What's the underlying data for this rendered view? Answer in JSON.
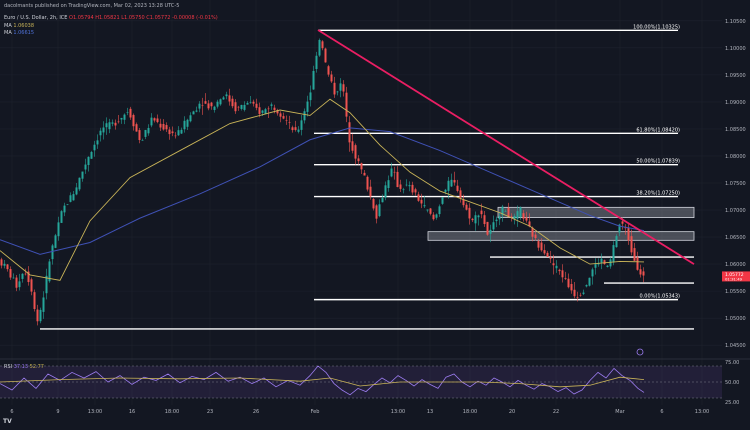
{
  "header": {
    "published": "dacolmants published on TradingView.com, Mar 02, 2023 13:28 UTC-5",
    "symbol": "Euro / U.S. Dollar, 2h, ICE",
    "ohlc": "O1.05794 H1.05821 L1.05750 C1.05772 -0.00008 (-0.01%)",
    "ma1_label": "MA",
    "ma1_value": "1.06038",
    "ma2_label": "MA",
    "ma2_value": "1.06615",
    "rsi_label": "RSI",
    "rsi_values": "37.13",
    "rsi_value2": "52.77",
    "logo": "TV"
  },
  "colors": {
    "background": "#131722",
    "bull": "#26a69a",
    "bear": "#ef5350",
    "trendline": "#e91e63",
    "ma_fast": "#c9b458",
    "ma_slow": "#3f51b5",
    "level": "#ffffff",
    "rsi": "#9c7cf0",
    "rsi_ma": "#c9b458",
    "price_tag": "#f23645"
  },
  "chart_data": {
    "type": "candlestick",
    "timeframe": "2h",
    "x_ticks": [
      "6",
      "9",
      "13:00",
      "16",
      "18:00",
      "23",
      "26",
      "Feb",
      "13:00",
      "13",
      "18:00",
      "20",
      "22",
      "Mar",
      "6",
      "13:00"
    ],
    "y_ticks": [
      "1.10500",
      "1.10000",
      "1.09500",
      "1.09000",
      "1.08500",
      "1.08000",
      "1.07500",
      "1.07000",
      "1.06500",
      "1.06000",
      "1.05500",
      "1.05000",
      "1.04500"
    ],
    "ylim": [
      1.043,
      1.107
    ],
    "price_path": [
      [
        0,
        1.0608
      ],
      [
        8,
        1.0592
      ],
      [
        18,
        1.056
      ],
      [
        26,
        1.0592
      ],
      [
        34,
        1.0548
      ],
      [
        38,
        1.0488
      ],
      [
        44,
        1.053
      ],
      [
        52,
        1.0618
      ],
      [
        64,
        1.07
      ],
      [
        76,
        1.0735
      ],
      [
        90,
        1.08
      ],
      [
        104,
        1.0852
      ],
      [
        116,
        1.086
      ],
      [
        130,
        1.0885
      ],
      [
        142,
        1.0825
      ],
      [
        154,
        1.087
      ],
      [
        166,
        1.085
      ],
      [
        178,
        1.0838
      ],
      [
        190,
        1.087
      ],
      [
        202,
        1.09
      ],
      [
        214,
        1.089
      ],
      [
        226,
        1.0915
      ],
      [
        238,
        1.0885
      ],
      [
        250,
        1.09
      ],
      [
        262,
        1.088
      ],
      [
        274,
        1.0895
      ],
      [
        286,
        1.087
      ],
      [
        298,
        1.084
      ],
      [
        306,
        1.0885
      ],
      [
        312,
        1.092
      ],
      [
        318,
        1.099
      ],
      [
        322,
        1.1025
      ],
      [
        328,
        1.096
      ],
      [
        336,
        1.0918
      ],
      [
        344,
        1.0935
      ],
      [
        350,
        1.0835
      ],
      [
        358,
        1.0795
      ],
      [
        366,
        1.076
      ],
      [
        372,
        1.0725
      ],
      [
        378,
        1.069
      ],
      [
        386,
        1.074
      ],
      [
        394,
        1.0778
      ],
      [
        400,
        1.074
      ],
      [
        410,
        1.0745
      ],
      [
        420,
        1.072
      ],
      [
        428,
        1.07
      ],
      [
        436,
        1.068
      ],
      [
        444,
        1.0728
      ],
      [
        452,
        1.0755
      ],
      [
        458,
        1.0745
      ],
      [
        466,
        1.0705
      ],
      [
        474,
        1.068
      ],
      [
        482,
        1.07
      ],
      [
        490,
        1.065
      ],
      [
        498,
        1.0688
      ],
      [
        506,
        1.0705
      ],
      [
        514,
        1.068
      ],
      [
        522,
        1.07
      ],
      [
        530,
        1.0668
      ],
      [
        538,
        1.064
      ],
      [
        546,
        1.0625
      ],
      [
        554,
        1.06
      ],
      [
        562,
        1.0585
      ],
      [
        570,
        1.056
      ],
      [
        578,
        1.054
      ],
      [
        586,
        1.0555
      ],
      [
        594,
        1.059
      ],
      [
        602,
        1.061
      ],
      [
        610,
        1.059
      ],
      [
        616,
        1.064
      ],
      [
        622,
        1.068
      ],
      [
        628,
        1.066
      ],
      [
        634,
        1.062
      ],
      [
        640,
        1.059
      ],
      [
        644,
        1.0577
      ]
    ],
    "ma_fast_path": [
      [
        0,
        1.0625
      ],
      [
        30,
        1.058
      ],
      [
        60,
        1.057
      ],
      [
        90,
        1.068
      ],
      [
        130,
        1.076
      ],
      [
        180,
        1.081
      ],
      [
        230,
        1.086
      ],
      [
        280,
        1.0885
      ],
      [
        310,
        1.0875
      ],
      [
        330,
        1.0905
      ],
      [
        350,
        1.088
      ],
      [
        380,
        1.082
      ],
      [
        410,
        1.077
      ],
      [
        440,
        1.0735
      ],
      [
        470,
        1.0715
      ],
      [
        500,
        1.0695
      ],
      [
        530,
        1.067
      ],
      [
        560,
        1.063
      ],
      [
        590,
        1.06
      ],
      [
        620,
        1.0605
      ],
      [
        644,
        1.0604
      ]
    ],
    "ma_slow_path": [
      [
        0,
        1.0645
      ],
      [
        40,
        1.0618
      ],
      [
        90,
        1.064
      ],
      [
        140,
        1.0685
      ],
      [
        200,
        1.073
      ],
      [
        260,
        1.078
      ],
      [
        310,
        1.083
      ],
      [
        350,
        1.0852
      ],
      [
        390,
        1.0845
      ],
      [
        440,
        1.081
      ],
      [
        490,
        1.077
      ],
      [
        540,
        1.073
      ],
      [
        590,
        1.069
      ],
      [
        620,
        1.067
      ],
      [
        644,
        1.0662
      ]
    ],
    "trendline": {
      "from": [
        "Feb 2",
        1.1033
      ],
      "to": [
        "Mar 3",
        1.063
      ]
    },
    "horizontal_levels": [
      {
        "price": 1.10325,
        "label": "100.00%(1.10325)",
        "from_x": 318,
        "to_x": 678
      },
      {
        "price": 1.0842,
        "label": "61.80%(1.08420)",
        "from_x": 314,
        "to_x": 678
      },
      {
        "price": 1.07839,
        "label": "50.00%(1.07839)",
        "from_x": 314,
        "to_x": 678
      },
      {
        "price": 1.0725,
        "label": "38.20%(1.07250)",
        "from_x": 314,
        "to_x": 678
      },
      {
        "price": 1.0613,
        "label": "",
        "from_x": 490,
        "to_x": 694
      },
      {
        "price": 1.0565,
        "label": "",
        "from_x": 604,
        "to_x": 694
      },
      {
        "price": 1.05343,
        "label": "0.00%(1.05343)",
        "from_x": 314,
        "to_x": 678
      },
      {
        "price": 1.048,
        "label": "",
        "from_x": 40,
        "to_x": 694
      }
    ],
    "zones": [
      {
        "top": 1.0705,
        "bottom": 1.0686,
        "from_x": 498,
        "to_x": 694
      },
      {
        "top": 1.066,
        "bottom": 1.0644,
        "from_x": 428,
        "to_x": 694
      }
    ],
    "price_tag": {
      "price": 1.05772,
      "label": "1.05772",
      "sublabel": "01:31:49"
    },
    "rsi": {
      "ylim": [
        25,
        75
      ],
      "y_ticks": [
        "75.00",
        "50.00",
        "25.00"
      ],
      "band": [
        30,
        70
      ],
      "path": [
        [
          0,
          48
        ],
        [
          12,
          40
        ],
        [
          24,
          55
        ],
        [
          36,
          42
        ],
        [
          48,
          60
        ],
        [
          60,
          52
        ],
        [
          72,
          62
        ],
        [
          84,
          55
        ],
        [
          96,
          63
        ],
        [
          108,
          50
        ],
        [
          120,
          58
        ],
        [
          132,
          47
        ],
        [
          144,
          56
        ],
        [
          156,
          52
        ],
        [
          168,
          60
        ],
        [
          180,
          49
        ],
        [
          192,
          57
        ],
        [
          204,
          53
        ],
        [
          216,
          62
        ],
        [
          228,
          51
        ],
        [
          240,
          56
        ],
        [
          252,
          48
        ],
        [
          264,
          55
        ],
        [
          276,
          44
        ],
        [
          288,
          52
        ],
        [
          300,
          46
        ],
        [
          310,
          58
        ],
        [
          318,
          70
        ],
        [
          326,
          62
        ],
        [
          334,
          48
        ],
        [
          342,
          40
        ],
        [
          350,
          34
        ],
        [
          358,
          42
        ],
        [
          366,
          38
        ],
        [
          374,
          47
        ],
        [
          382,
          55
        ],
        [
          390,
          49
        ],
        [
          398,
          58
        ],
        [
          406,
          52
        ],
        [
          414,
          45
        ],
        [
          422,
          53
        ],
        [
          430,
          47
        ],
        [
          438,
          42
        ],
        [
          446,
          56
        ],
        [
          454,
          60
        ],
        [
          462,
          50
        ],
        [
          470,
          44
        ],
        [
          478,
          51
        ],
        [
          486,
          46
        ],
        [
          494,
          55
        ],
        [
          502,
          50
        ],
        [
          510,
          44
        ],
        [
          518,
          52
        ],
        [
          526,
          46
        ],
        [
          534,
          41
        ],
        [
          542,
          48
        ],
        [
          550,
          44
        ],
        [
          558,
          38
        ],
        [
          566,
          43
        ],
        [
          574,
          35
        ],
        [
          582,
          40
        ],
        [
          590,
          52
        ],
        [
          598,
          62
        ],
        [
          606,
          55
        ],
        [
          614,
          67
        ],
        [
          622,
          58
        ],
        [
          630,
          52
        ],
        [
          638,
          42
        ],
        [
          644,
          37
        ]
      ],
      "ma_path": [
        [
          0,
          50
        ],
        [
          60,
          53
        ],
        [
          120,
          55
        ],
        [
          180,
          54
        ],
        [
          240,
          55
        ],
        [
          300,
          51
        ],
        [
          330,
          55
        ],
        [
          360,
          45
        ],
        [
          400,
          50
        ],
        [
          440,
          50
        ],
        [
          480,
          50
        ],
        [
          520,
          48
        ],
        [
          560,
          44
        ],
        [
          590,
          46
        ],
        [
          620,
          56
        ],
        [
          644,
          53
        ]
      ]
    }
  }
}
